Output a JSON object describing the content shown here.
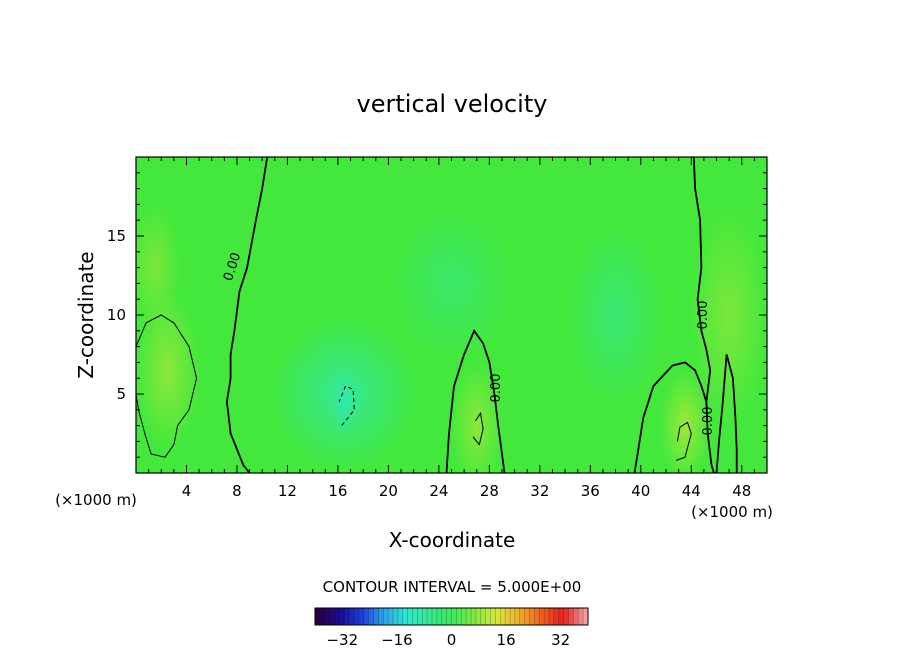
{
  "chart_data": {
    "type": "heatmap",
    "title": "vertical velocity",
    "xlabel": "X-coordinate",
    "ylabel": "Z-coordinate",
    "x_units": "(×1000 m)",
    "y_units": "(×1000 m)",
    "xlim": [
      0,
      50
    ],
    "ylim": [
      0,
      20
    ],
    "x_ticks": [
      4,
      8,
      12,
      16,
      20,
      24,
      28,
      32,
      36,
      40,
      44,
      48
    ],
    "y_ticks": [
      5,
      10,
      15
    ],
    "contour_label": "0.00",
    "contour_interval_text": "CONTOUR INTERVAL = 5.000E+00",
    "colorbar": {
      "range": [
        -40,
        40
      ],
      "tick_values": [
        -32,
        -16,
        0,
        16,
        32
      ],
      "tick_labels": [
        "−32",
        "−16",
        "0",
        "16",
        "32"
      ],
      "colors": [
        "#2a0040",
        "#1a0a90",
        "#1f3fd8",
        "#2aa6e8",
        "#30e8d0",
        "#36e890",
        "#3fe860",
        "#7ee840",
        "#d8e840",
        "#f0b030",
        "#f06020",
        "#e82020",
        "#f0a0a0"
      ]
    },
    "blobs": [
      {
        "x": 2.5,
        "z": 6.5,
        "rx": 2.5,
        "rz": 5,
        "value": 3
      },
      {
        "x": 1.5,
        "z": 13,
        "rx": 2,
        "rz": 4,
        "value": 2
      },
      {
        "x": 16.5,
        "z": 5,
        "rx": 6,
        "rz": 5,
        "value": -4
      },
      {
        "x": 16.5,
        "z": 4.5,
        "rx": 1,
        "rz": 2,
        "value": -6
      },
      {
        "x": 27,
        "z": 3,
        "rx": 2,
        "rz": 4,
        "value": 3
      },
      {
        "x": 43.5,
        "z": 3,
        "rx": 2,
        "rz": 3.5,
        "value": 4
      },
      {
        "x": 47,
        "z": 10,
        "rx": 3,
        "rz": 7,
        "value": 2
      },
      {
        "x": 38,
        "z": 10,
        "rx": 4,
        "rz": 6,
        "value": -2
      },
      {
        "x": 25,
        "z": 12,
        "rx": 5,
        "rz": 5,
        "value": -1.5
      }
    ],
    "contours": [
      {
        "style": "thick",
        "points": [
          [
            10.4,
            20
          ],
          [
            10,
            18
          ],
          [
            9.5,
            16
          ],
          [
            8.8,
            13
          ],
          [
            8.2,
            11.5
          ],
          [
            7.8,
            9
          ],
          [
            7.5,
            7.5
          ],
          [
            7.5,
            6
          ],
          [
            7.2,
            4.5
          ],
          [
            7.5,
            2.5
          ],
          [
            8,
            1.5
          ],
          [
            8.5,
            0.5
          ],
          [
            9,
            0
          ]
        ]
      },
      {
        "style": "thick",
        "points": [
          [
            24.6,
            0
          ],
          [
            24.8,
            2.5
          ],
          [
            25.2,
            5.5
          ],
          [
            26,
            7.5
          ],
          [
            26.8,
            9
          ],
          [
            27.5,
            8.2
          ],
          [
            28,
            7
          ],
          [
            28.4,
            5
          ],
          [
            28.7,
            3
          ],
          [
            29,
            1.2
          ],
          [
            29.2,
            0
          ]
        ]
      },
      {
        "style": "thick",
        "points": [
          [
            44.2,
            20
          ],
          [
            44.3,
            18
          ],
          [
            44.7,
            16
          ],
          [
            44.8,
            13
          ],
          [
            44.5,
            11
          ],
          [
            44.8,
            9
          ],
          [
            45.2,
            7.8
          ],
          [
            45.5,
            6.5
          ],
          [
            45.2,
            4.5
          ],
          [
            45.3,
            2.5
          ],
          [
            45.6,
            0.5
          ],
          [
            45.8,
            0
          ]
        ]
      },
      {
        "style": "thick",
        "points": [
          [
            39.5,
            0
          ],
          [
            39.8,
            1.5
          ],
          [
            40.2,
            3.5
          ],
          [
            41,
            5.5
          ],
          [
            42.5,
            6.8
          ],
          [
            43.5,
            7
          ],
          [
            44.3,
            6.5
          ],
          [
            44.8,
            5.5
          ],
          [
            45.2,
            4.5
          ]
        ]
      },
      {
        "style": "thick",
        "points": [
          [
            46,
            0
          ],
          [
            46.2,
            2
          ],
          [
            46.5,
            4.5
          ],
          [
            46.8,
            7.5
          ],
          [
            47.3,
            6
          ],
          [
            47.5,
            3.5
          ],
          [
            47.6,
            1.5
          ],
          [
            47.6,
            0
          ]
        ]
      },
      {
        "style": "thin",
        "points": [
          [
            0,
            8
          ],
          [
            0.8,
            9.5
          ],
          [
            2,
            10
          ],
          [
            3,
            9.5
          ],
          [
            4.2,
            8
          ],
          [
            4.8,
            6
          ],
          [
            4.2,
            4
          ],
          [
            3.3,
            3
          ],
          [
            3,
            1.8
          ],
          [
            2.3,
            1
          ],
          [
            1.2,
            1.2
          ],
          [
            0.7,
            2.5
          ],
          [
            0.2,
            4
          ],
          [
            0,
            5
          ]
        ]
      },
      {
        "style": "thin",
        "points": [
          [
            42.8,
            0.8
          ],
          [
            43.5,
            1
          ],
          [
            44,
            2.5
          ],
          [
            43.7,
            3.2
          ],
          [
            43.1,
            2.9
          ],
          [
            42.9,
            2
          ]
        ]
      },
      {
        "style": "thin",
        "points": [
          [
            26.7,
            2.3
          ],
          [
            27.2,
            1.8
          ],
          [
            27.5,
            2.8
          ],
          [
            27.3,
            3.8
          ],
          [
            26.9,
            3.3
          ]
        ]
      },
      {
        "style": "dashed",
        "points": [
          [
            16.3,
            3
          ],
          [
            17.3,
            4
          ],
          [
            17.2,
            5.3
          ],
          [
            16.6,
            5.5
          ],
          [
            16.1,
            4.5
          ]
        ]
      }
    ]
  }
}
